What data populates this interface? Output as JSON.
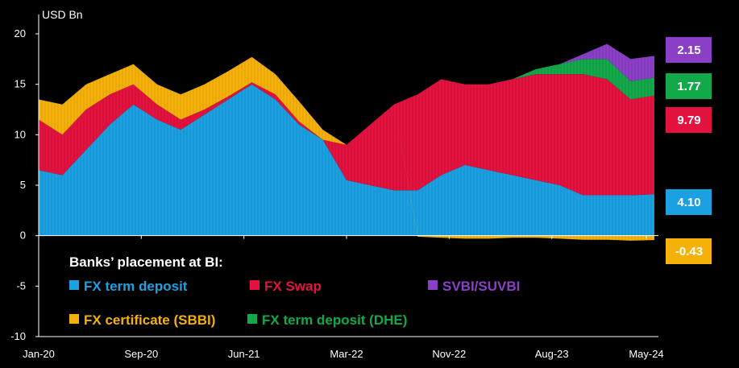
{
  "chart_data": {
    "type": "area",
    "stacked": true,
    "title": "",
    "ylabel": "USD Bn",
    "xlabel": "",
    "ylim": [
      -10,
      20
    ],
    "yticks": [
      -10,
      -5,
      0,
      5,
      10,
      15,
      20
    ],
    "xtick_labels": [
      "Jan-20",
      "Sep-20",
      "Jun-21",
      "Mar-22",
      "Nov-22",
      "Aug-23",
      "May-24"
    ],
    "x_months": [
      "Jan-20",
      "Mar-20",
      "May-20",
      "Jul-20",
      "Sep-20",
      "Nov-20",
      "Jan-21",
      "Mar-21",
      "May-21",
      "Jul-21",
      "Sep-21",
      "Nov-21",
      "Jan-22",
      "Mar-22",
      "May-22",
      "Jul-22",
      "Sep-22",
      "Nov-22",
      "Jan-23",
      "Mar-23",
      "May-23",
      "Jul-23",
      "Sep-23",
      "Nov-23",
      "Jan-24",
      "Mar-24",
      "May-24"
    ],
    "series": [
      {
        "name": "FX term deposit",
        "color": "#1ba1e2",
        "values": [
          6.5,
          6.0,
          8.5,
          11.0,
          13.0,
          11.5,
          10.5,
          12.0,
          13.5,
          15.0,
          13.5,
          11.0,
          9.5,
          5.5,
          5.0,
          4.5,
          4.5,
          6.0,
          7.0,
          6.5,
          6.0,
          5.5,
          5.0,
          4.0,
          4.0,
          4.0,
          4.1
        ]
      },
      {
        "name": "FX Swap",
        "color": "#e3123f",
        "values": [
          5.0,
          4.0,
          4.0,
          3.0,
          2.0,
          1.5,
          1.0,
          0.5,
          0.3,
          0.2,
          0.5,
          0.3,
          0.0,
          3.5,
          6.0,
          8.5,
          9.5,
          9.5,
          8.0,
          8.5,
          9.5,
          10.5,
          11.0,
          12.0,
          11.5,
          9.5,
          9.79
        ]
      },
      {
        "name": "FX certificate (SBBI)",
        "color": "#f5b10a",
        "values": [
          2.0,
          3.0,
          2.5,
          2.0,
          2.0,
          2.0,
          2.5,
          2.5,
          2.5,
          2.5,
          2.0,
          2.0,
          1.0,
          0.0,
          0.0,
          0.0,
          -0.1,
          -0.2,
          -0.3,
          -0.3,
          -0.2,
          -0.2,
          -0.3,
          -0.4,
          -0.4,
          -0.5,
          -0.43
        ]
      },
      {
        "name": "FX term deposit (DHE)",
        "color": "#13a84a",
        "values": [
          0,
          0,
          0,
          0,
          0,
          0,
          0,
          0,
          0,
          0,
          0,
          0,
          0,
          0,
          0,
          0,
          0,
          0,
          0,
          0,
          0,
          0.5,
          1.0,
          1.5,
          2.0,
          1.8,
          1.77
        ]
      },
      {
        "name": "SVBI/SUVBI",
        "color": "#8a3fc6",
        "values": [
          0,
          0,
          0,
          0,
          0,
          0,
          0,
          0,
          0,
          0,
          0,
          0,
          0,
          0,
          0,
          0,
          0,
          0,
          0,
          0,
          0,
          0,
          0,
          0.5,
          1.5,
          2.2,
          2.15
        ]
      }
    ],
    "end_labels": [
      {
        "series": "SVBI/SUVBI",
        "text": "2.15",
        "color": "#8a3fc6"
      },
      {
        "series": "FX term deposit (DHE)",
        "text": "1.77",
        "color": "#13a84a"
      },
      {
        "series": "FX Swap",
        "text": "9.79",
        "color": "#e3123f"
      },
      {
        "series": "FX term deposit",
        "text": "4.10",
        "color": "#1ba1e2"
      },
      {
        "series": "FX certificate (SBBI)",
        "text": "-0.43",
        "color": "#f5b10a"
      }
    ],
    "legend": {
      "title": "Banks’ placement at BI:",
      "items": [
        {
          "label": "FX term deposit",
          "color": "#1ba1e2"
        },
        {
          "label": "FX Swap",
          "color": "#e3123f"
        },
        {
          "label": "SVBI/SUVBI",
          "color": "#8a3fc6"
        },
        {
          "label": "FX certificate (SBBI)",
          "color": "#f5b10a"
        },
        {
          "label": "FX term deposit (DHE)",
          "color": "#13a84a"
        }
      ]
    }
  }
}
